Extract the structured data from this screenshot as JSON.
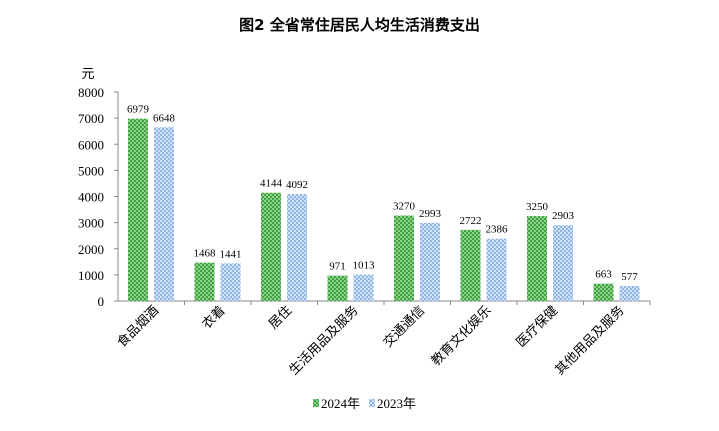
{
  "chart_data": {
    "type": "bar",
    "title": "图2  全省常住居民人均生活消费支出",
    "ylabel": "元",
    "xlabel": "",
    "ylim": [
      0,
      8000
    ],
    "yticks": [
      0,
      1000,
      2000,
      3000,
      4000,
      5000,
      6000,
      7000,
      8000
    ],
    "grid": false,
    "legend_position": "bottom",
    "categories": [
      "食品烟酒",
      "衣着",
      "居住",
      "生活用品及服务",
      "交通通信",
      "教育文化娱乐",
      "医疗保健",
      "其他用品及服务"
    ],
    "series": [
      {
        "name": "2024年",
        "color": "#3fa33f",
        "values": [
          6979,
          1468,
          4144,
          971,
          3270,
          2722,
          3250,
          663
        ]
      },
      {
        "name": "2023年",
        "color": "#9dbfe8",
        "values": [
          6648,
          1441,
          4092,
          1013,
          2993,
          2386,
          2903,
          577
        ]
      }
    ]
  }
}
